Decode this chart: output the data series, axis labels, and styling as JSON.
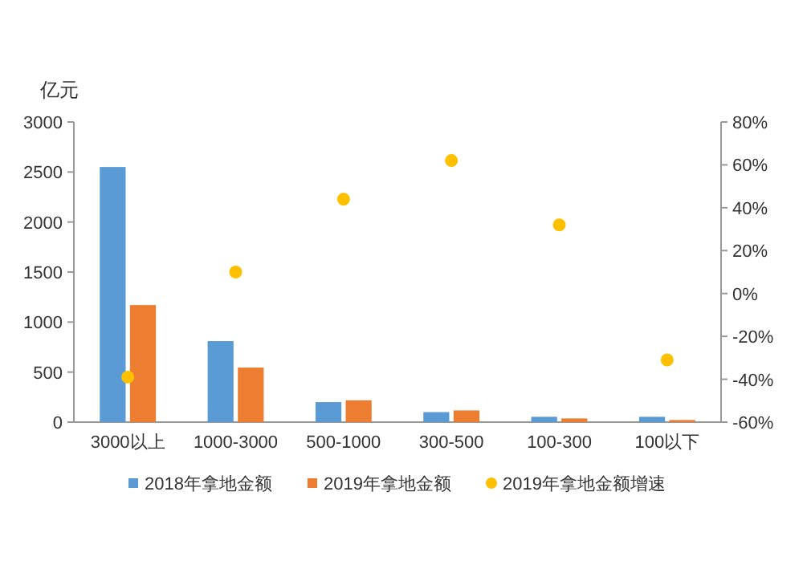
{
  "chart_data": {
    "type": "bar",
    "ylabel": "亿元",
    "categories": [
      "3000以上",
      "1000-3000",
      "500-1000",
      "300-500",
      "100-300",
      "100以下"
    ],
    "series": [
      {
        "name": "2018年拿地金额",
        "color": "#5b9bd5",
        "values": [
          2550,
          810,
          200,
          100,
          53,
          53
        ]
      },
      {
        "name": "2019年拿地金额",
        "color": "#ed7d31",
        "values": [
          1170,
          545,
          218,
          117,
          37,
          21
        ]
      },
      {
        "name": "2019年拿地金额增速",
        "type": "scatter",
        "axis": "y2",
        "marker": "circle",
        "color": "#ffc000",
        "values": [
          -39,
          10,
          44,
          62,
          32,
          -31
        ]
      }
    ],
    "ylim": [
      0,
      3000
    ],
    "yticks": [
      0,
      500,
      1000,
      1500,
      2000,
      2500,
      3000
    ],
    "y2lim": [
      -60,
      80
    ],
    "y2ticks": [
      {
        "value": -60,
        "label": "-60%"
      },
      {
        "value": -40,
        "label": "-40%"
      },
      {
        "value": -20,
        "label": "-20%"
      },
      {
        "value": 0,
        "label": "0%"
      },
      {
        "value": 20,
        "label": "20%"
      },
      {
        "value": 40,
        "label": "40%"
      },
      {
        "value": 60,
        "label": "60%"
      },
      {
        "value": 80,
        "label": "80%"
      }
    ],
    "legend": "bottom"
  }
}
